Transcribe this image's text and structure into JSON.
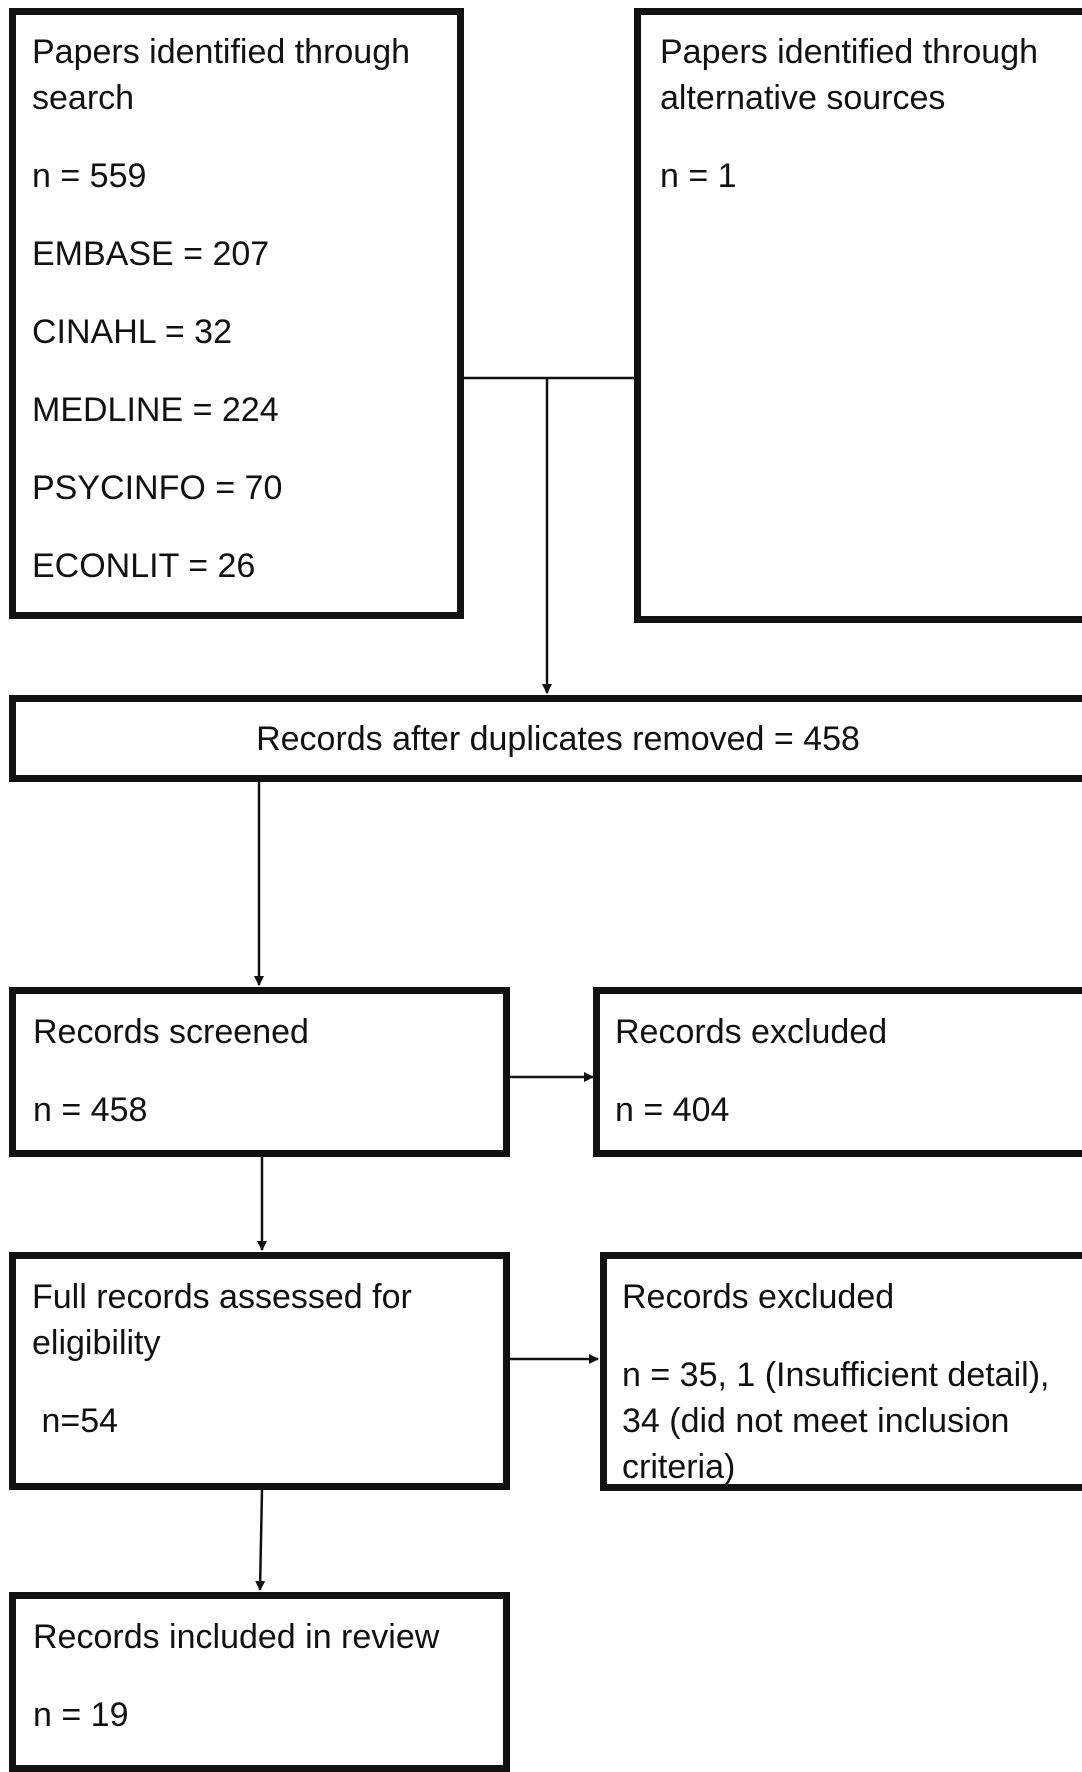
{
  "search_box": {
    "title_line1": "Papers identified through",
    "title_line2": "search",
    "count": "n = 559",
    "databases": [
      "EMBASE = 207",
      "CINAHL = 32",
      "MEDLINE = 224",
      "PSYCINFO = 70",
      "ECONLIT = 26"
    ]
  },
  "alternative_box": {
    "title_line1": "Papers identified through",
    "title_line2": "alternative sources",
    "count": "n = 1"
  },
  "duplicates_box": {
    "label": "Records after duplicates removed = 458"
  },
  "screened_box": {
    "title": "Records screened",
    "count": "n = 458"
  },
  "excluded_screen_box": {
    "title": "Records excluded",
    "count": "n = 404"
  },
  "fulltext_box": {
    "title_line1": "Full records assessed for",
    "title_line2": "eligibility",
    "count": " n=54"
  },
  "excluded_fulltext_box": {
    "title": "Records excluded",
    "detail_line1": "n = 35, 1 (Insufficient detail),",
    "detail_line2": "34 (did not meet inclusion",
    "detail_line3": "criteria)"
  },
  "included_box": {
    "title": "Records included in review",
    "count": "n = 19"
  }
}
